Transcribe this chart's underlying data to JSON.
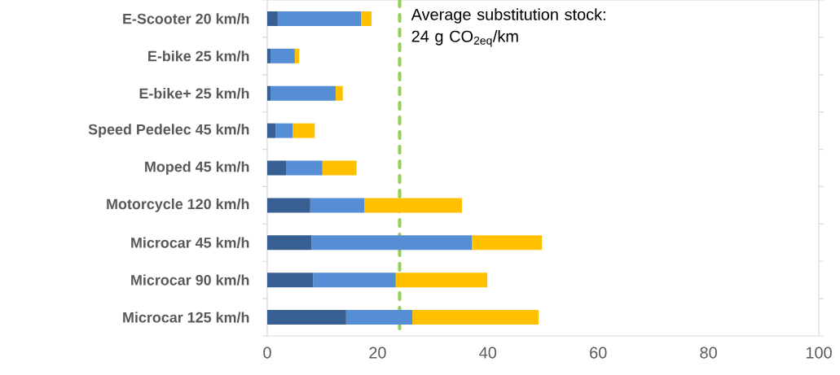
{
  "chart_data": {
    "type": "bar",
    "orientation": "horizontal",
    "stacked": true,
    "categories": [
      "E-Scooter 20 km/h",
      "E-bike 25 km/h",
      "E-bike+ 25 km/h",
      "Speed Pedelec 45 km/h",
      "Moped 45 km/h",
      "Motorcycle 120 km/h",
      "Microcar 45 km/h",
      "Microcar 90 km/h",
      "Microcar 125 km/h"
    ],
    "series": [
      {
        "color": "#375f91",
        "values": [
          1.9,
          0.6,
          0.6,
          1.5,
          3.4,
          7.8,
          8.0,
          8.3,
          14.3
        ]
      },
      {
        "color": "#558ed5",
        "values": [
          15.1,
          4.4,
          11.8,
          3.1,
          6.6,
          9.8,
          29.1,
          15.0,
          12.0
        ]
      },
      {
        "color": "#ffc000",
        "values": [
          1.9,
          0.8,
          1.3,
          4.0,
          6.2,
          17.7,
          12.7,
          16.6,
          22.9
        ]
      }
    ],
    "xlim": [
      0,
      100
    ],
    "xticks": [
      0,
      20,
      40,
      60,
      80,
      100
    ],
    "ref_lines": [
      {
        "axis": "x",
        "value": 24,
        "label": "Average substitution stock: 24 g CO$_{2eq}$/km",
        "color": "#92d050",
        "line_style": "dashed"
      }
    ]
  }
}
